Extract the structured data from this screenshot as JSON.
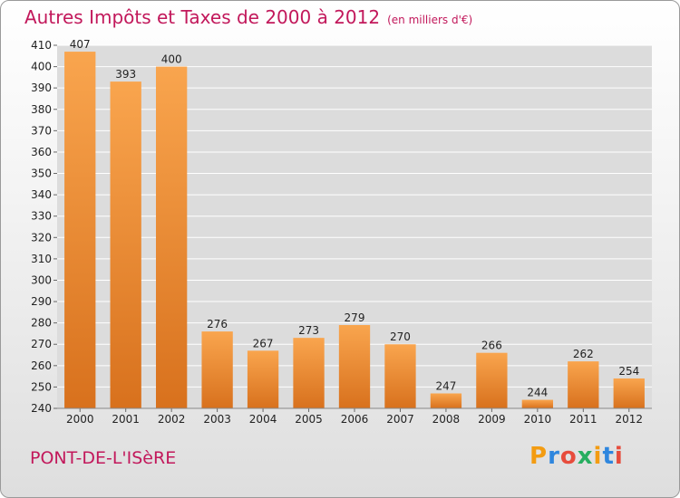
{
  "header": {
    "title": "Autres Impôts et Taxes de 2000 à 2012",
    "subtitle": "(en milliers d'€)"
  },
  "footer": {
    "commune": "PONT-DE-L'ISèRE",
    "brand": "Proxiti",
    "brand_colors": [
      "#f39c12",
      "#2e86de",
      "#e74c3c",
      "#27ae60",
      "#f39c12",
      "#2e86de",
      "#e74c3c"
    ]
  },
  "chart_data": {
    "type": "bar",
    "categories": [
      "2000",
      "2001",
      "2002",
      "2003",
      "2004",
      "2005",
      "2006",
      "2007",
      "2008",
      "2009",
      "2010",
      "2011",
      "2012"
    ],
    "values": [
      407,
      393,
      400,
      276,
      267,
      273,
      279,
      270,
      247,
      266,
      244,
      262,
      254
    ],
    "ylim": [
      240,
      410
    ],
    "ytick_step": 10,
    "grid": true,
    "bar_color_top": "#f9a54e",
    "bar_color_bottom": "#d8711d",
    "plot_background": "#dcdcdc"
  }
}
